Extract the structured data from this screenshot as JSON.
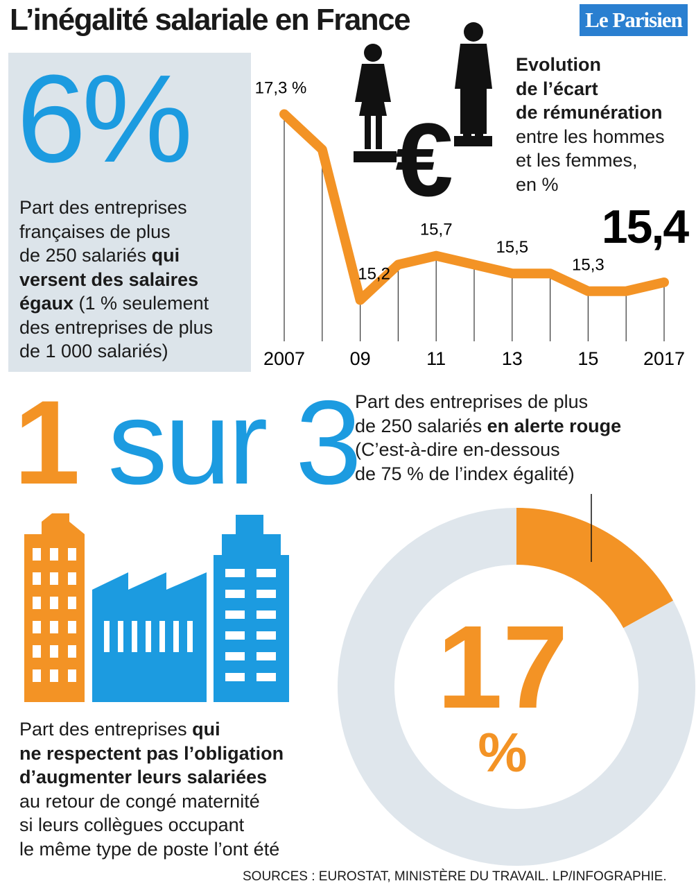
{
  "title": "L’inégalité salariale en France",
  "logo": "Le Parisien",
  "stat_equal": {
    "figure": "6%",
    "lines": [
      [
        {
          "t": "Part des entreprises",
          "b": false
        }
      ],
      [
        {
          "t": "françaises de plus",
          "b": false
        }
      ],
      [
        {
          "t": "de 250 salariés ",
          "b": false
        },
        {
          "t": "qui",
          "b": true
        }
      ],
      [
        {
          "t": "versent des salaires",
          "b": true
        }
      ],
      [
        {
          "t": "égaux",
          "b": true
        },
        {
          "t": " (1 % seulement",
          "b": false
        }
      ],
      [
        {
          "t": "des entreprises de plus",
          "b": false
        }
      ],
      [
        {
          "t": "de 1 000 salariés)",
          "b": false
        }
      ]
    ]
  },
  "evolution_caption": {
    "euro_symbol": "€",
    "lines": [
      [
        {
          "t": "Evolution",
          "b": true
        }
      ],
      [
        {
          "t": "de l’écart",
          "b": true
        }
      ],
      [
        {
          "t": "de rémunération",
          "b": true
        }
      ],
      [
        {
          "t": "entre les hommes",
          "b": false
        }
      ],
      [
        {
          "t": "et les femmes,",
          "b": false
        }
      ],
      [
        {
          "t": "en %",
          "b": false
        }
      ]
    ]
  },
  "stat_ratio": {
    "figure_number": "1",
    "figure_text": "sur 3",
    "lines": [
      [
        {
          "t": "Part des entreprises ",
          "b": false
        },
        {
          "t": "qui",
          "b": true
        }
      ],
      [
        {
          "t": "ne respectent pas l’obligation",
          "b": true
        }
      ],
      [
        {
          "t": "d’augmenter leurs salariées",
          "b": true
        }
      ],
      [
        {
          "t": "au retour de congé maternité",
          "b": false
        }
      ],
      [
        {
          "t": "si leurs collègues occupant",
          "b": false
        }
      ],
      [
        {
          "t": "le même type de poste l’ont été",
          "b": false
        }
      ]
    ]
  },
  "alert_caption": {
    "lines": [
      [
        {
          "t": "Part des entreprises de plus",
          "b": false
        }
      ],
      [
        {
          "t": "de 250 salariés ",
          "b": false
        },
        {
          "t": "en alerte rouge",
          "b": true
        }
      ],
      [
        {
          "t": "(C’est-à-dire en-dessous",
          "b": false
        }
      ],
      [
        {
          "t": "de 75 % de l’index égalité)",
          "b": false
        }
      ]
    ]
  },
  "source": "SOURCES : EUROSTAT, MINISTÈRE DU TRAVAIL.   LP/INFOGRAPHIE.",
  "chart_data": [
    {
      "type": "line",
      "x": [
        2007,
        2008,
        2009,
        2010,
        2011,
        2012,
        2013,
        2014,
        2015,
        2016,
        2017
      ],
      "values": [
        17.3,
        16.9,
        15.2,
        15.6,
        15.7,
        15.6,
        15.5,
        15.5,
        15.3,
        15.3,
        15.4
      ],
      "value_labels": [
        "17,3 %",
        null,
        "15,2",
        null,
        "15,7",
        null,
        "15,5",
        null,
        "15,3",
        null,
        "15,4"
      ],
      "color": "#f39325",
      "xlim": [
        2007,
        2017
      ],
      "ylim": [
        15,
        17.5
      ],
      "xticks": [
        2007,
        {
          "value": 2009,
          "label": "09"
        },
        {
          "value": 2011,
          "label": "11"
        },
        {
          "value": 2013,
          "label": "13"
        },
        {
          "value": 2015,
          "label": "15"
        },
        2017
      ]
    },
    {
      "type": "pie",
      "values": [
        17,
        83
      ],
      "value_labels": [
        "17",
        null
      ],
      "unit": "%",
      "colors": [
        "#f39325",
        "#dfe6ec"
      ]
    }
  ]
}
